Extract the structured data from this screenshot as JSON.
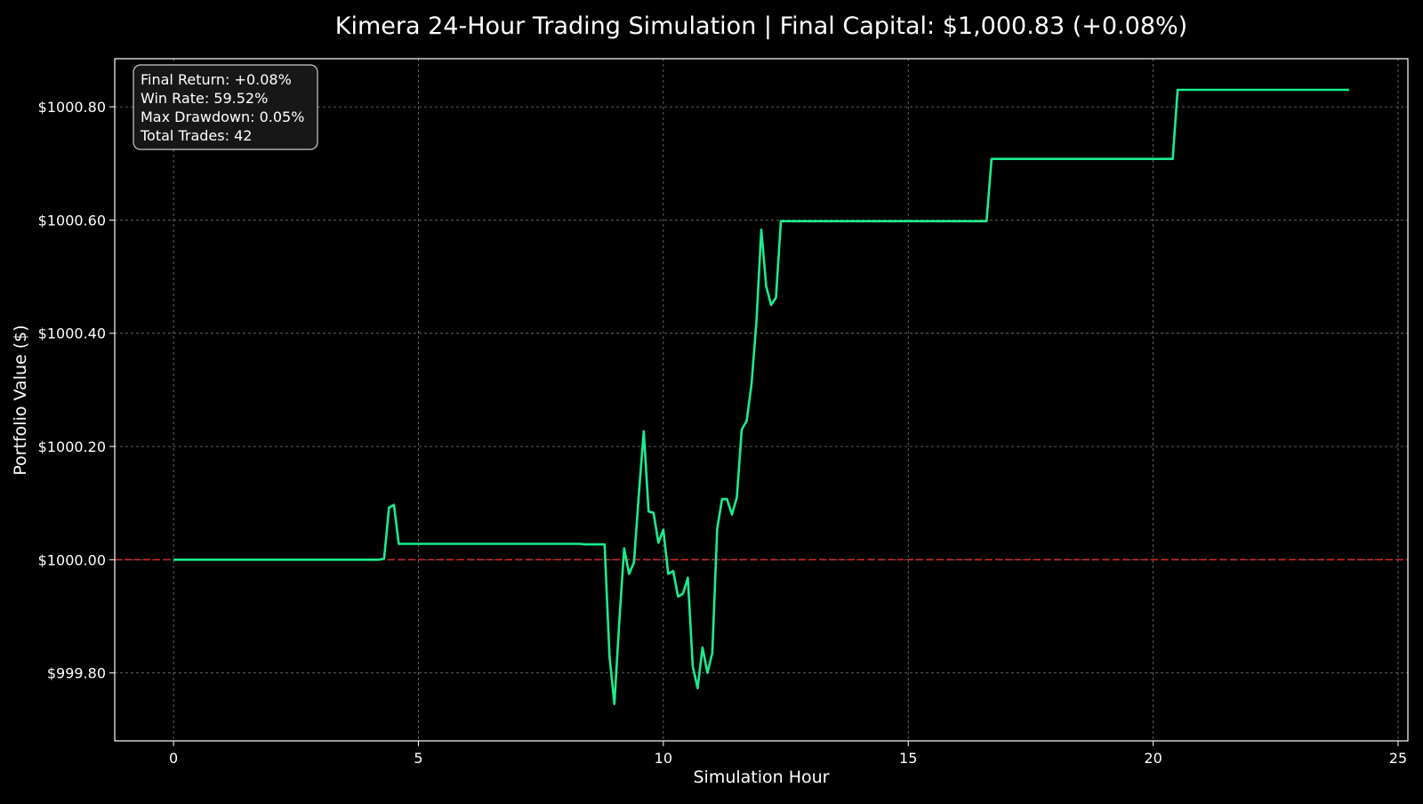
{
  "chart_data": {
    "type": "line",
    "title": "Kimera 24-Hour Trading Simulation | Final Capital: $1,000.83 (+0.08%)",
    "xlabel": "Simulation Hour",
    "ylabel": "Portfolio Value ($)",
    "xlim": [
      -1.2,
      25.2
    ],
    "ylim": [
      999.68,
      1000.885
    ],
    "x_ticks": [
      0,
      5,
      10,
      15,
      20,
      25
    ],
    "x_tick_labels": [
      "0",
      "5",
      "10",
      "15",
      "20",
      "25"
    ],
    "y_ticks": [
      999.8,
      1000.0,
      1000.2,
      1000.4,
      1000.6,
      1000.8
    ],
    "y_tick_labels": [
      "$999.80",
      "$1000.00",
      "$1000.20",
      "$1000.40",
      "$1000.60",
      "$1000.80"
    ],
    "grid": true,
    "baseline": {
      "value": 1000.0,
      "color": "#d62728",
      "style": "dashed"
    },
    "series": [
      {
        "color": "#1aed8f",
        "x": [
          0,
          4.2,
          4.3,
          4.4,
          4.5,
          4.6,
          8.3,
          8.4,
          8.8,
          8.9,
          9.0,
          9.1,
          9.2,
          9.3,
          9.4,
          9.5,
          9.6,
          9.7,
          9.8,
          9.9,
          10.0,
          10.1,
          10.2,
          10.3,
          10.4,
          10.5,
          10.6,
          10.7,
          10.8,
          10.9,
          11.0,
          11.1,
          11.2,
          11.3,
          11.4,
          11.5,
          11.6,
          11.7,
          11.8,
          11.9,
          12.0,
          12.1,
          12.2,
          12.3,
          12.4,
          16.6,
          16.7,
          20.4,
          20.5,
          24.0
        ],
        "values": [
          1000.0,
          1000.0,
          1000.002,
          1000.092,
          1000.097,
          1000.028,
          1000.028,
          1000.027,
          1000.027,
          999.83,
          999.745,
          999.89,
          1000.02,
          999.975,
          999.995,
          1000.115,
          1000.227,
          1000.085,
          1000.083,
          1000.03,
          1000.053,
          999.975,
          999.98,
          999.935,
          999.94,
          999.968,
          999.812,
          999.773,
          999.845,
          999.8,
          999.835,
          1000.055,
          1000.107,
          1000.107,
          1000.08,
          1000.11,
          1000.23,
          1000.245,
          1000.31,
          1000.42,
          1000.583,
          1000.483,
          1000.45,
          1000.463,
          1000.598,
          1000.598,
          1000.708,
          1000.708,
          1000.83,
          1000.83
        ]
      }
    ],
    "annotation": {
      "lines": [
        "Final Return: +0.08%",
        "Win Rate: 59.52%",
        "Max Drawdown: 0.05%",
        "Total Trades: 42"
      ],
      "placement": "top-left"
    }
  }
}
